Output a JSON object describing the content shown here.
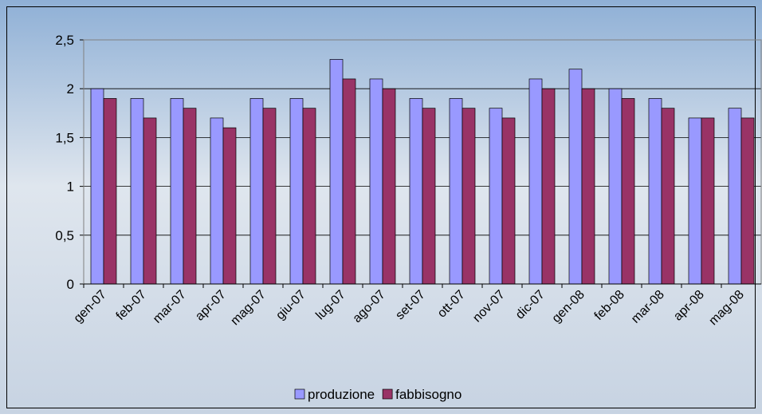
{
  "chart_data": {
    "type": "bar",
    "categories": [
      "gen-07",
      "feb-07",
      "mar-07",
      "apr-07",
      "mag-07",
      "giu-07",
      "lug-07",
      "ago-07",
      "set-07",
      "ott-07",
      "nov-07",
      "dic-07",
      "gen-08",
      "feb-08",
      "mar-08",
      "apr-08",
      "mag-08"
    ],
    "series": [
      {
        "name": "produzione",
        "color": "#9999ff",
        "values": [
          2.0,
          1.9,
          1.9,
          1.7,
          1.9,
          1.9,
          2.3,
          2.1,
          1.9,
          1.9,
          1.8,
          2.1,
          2.2,
          2.0,
          1.9,
          1.7,
          1.8
        ]
      },
      {
        "name": "fabbisogno",
        "color": "#993366",
        "values": [
          1.9,
          1.7,
          1.8,
          1.6,
          1.8,
          1.8,
          2.1,
          2.0,
          1.8,
          1.8,
          1.7,
          2.0,
          2.0,
          1.9,
          1.8,
          1.7,
          1.7
        ]
      }
    ],
    "ylim": [
      0,
      2.5
    ],
    "yticks": [
      0,
      {
        "value": 0.5,
        "label": "0,5"
      },
      1,
      {
        "value": 1.5,
        "label": "1,5"
      },
      2,
      {
        "value": 2.5,
        "label": "2,5"
      }
    ],
    "grid": true,
    "legend": "bottom"
  }
}
